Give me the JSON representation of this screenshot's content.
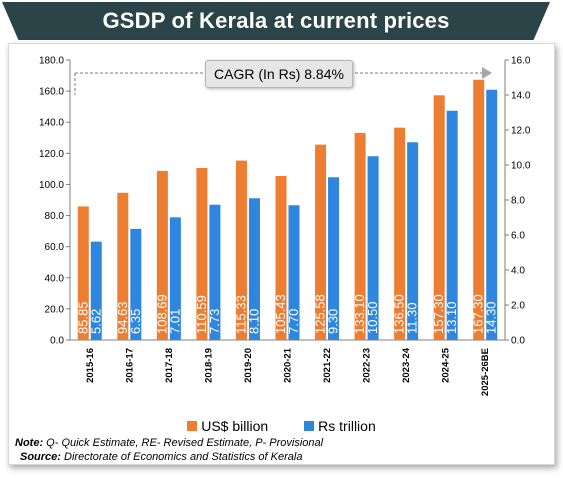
{
  "header": {
    "title": "GSDP of Kerala at current prices"
  },
  "annotation": {
    "cagr_label": "CAGR (In Rs) 8.84%"
  },
  "colors": {
    "banner": "#2b4447",
    "usd_series": "#ed7d31",
    "rs_series": "#2e86de"
  },
  "footer": {
    "note_label": "Note:",
    "note_text": " Q- Quick Estimate, RE- Revised Estimate, P- Provisional",
    "source_label": "Source:",
    "source_text": " Directorate of Economics and Statistics of Kerala"
  },
  "chart_data": {
    "type": "bar",
    "title": "GSDP of Kerala at current prices",
    "categories": [
      "2015-16",
      "2016-17",
      "2017-18",
      "2018-19",
      "2019-20",
      "2020-21",
      "2021-22",
      "2022-23",
      "2023-24",
      "2024-25",
      "2025-26BE"
    ],
    "series": [
      {
        "name": "US$ billion",
        "axis": "left",
        "values": [
          85.85,
          94.63,
          108.69,
          110.59,
          115.33,
          105.43,
          125.58,
          133.1,
          136.5,
          157.3,
          167.3
        ],
        "labels": [
          "85.85",
          "94.63",
          "108.69",
          "110.59",
          "115.33",
          "105.43",
          "125.58",
          "133.10",
          "136.50",
          "157.30",
          "167.30"
        ]
      },
      {
        "name": "Rs trillion",
        "axis": "right",
        "values": [
          5.62,
          6.35,
          7.01,
          7.73,
          8.1,
          7.7,
          9.3,
          10.5,
          11.3,
          13.1,
          14.3
        ],
        "labels": [
          "5.62",
          "6.35",
          "7.01",
          "7.73",
          "8.10",
          "7.70",
          "9.30",
          "10.50",
          "11.30",
          "13.10",
          "14.30"
        ]
      }
    ],
    "left_axis": {
      "ylim": [
        0,
        180
      ],
      "ticks": [
        "0.0",
        "20.0",
        "40.0",
        "60.0",
        "80.0",
        "100.0",
        "120.0",
        "140.0",
        "160.0",
        "180.0"
      ]
    },
    "right_axis": {
      "ylim": [
        0,
        16
      ],
      "ticks": [
        "0.0",
        "2.0",
        "4.0",
        "6.0",
        "8.0",
        "10.0",
        "12.0",
        "14.0",
        "16.0"
      ]
    },
    "grid": false,
    "legend_position": "bottom"
  }
}
